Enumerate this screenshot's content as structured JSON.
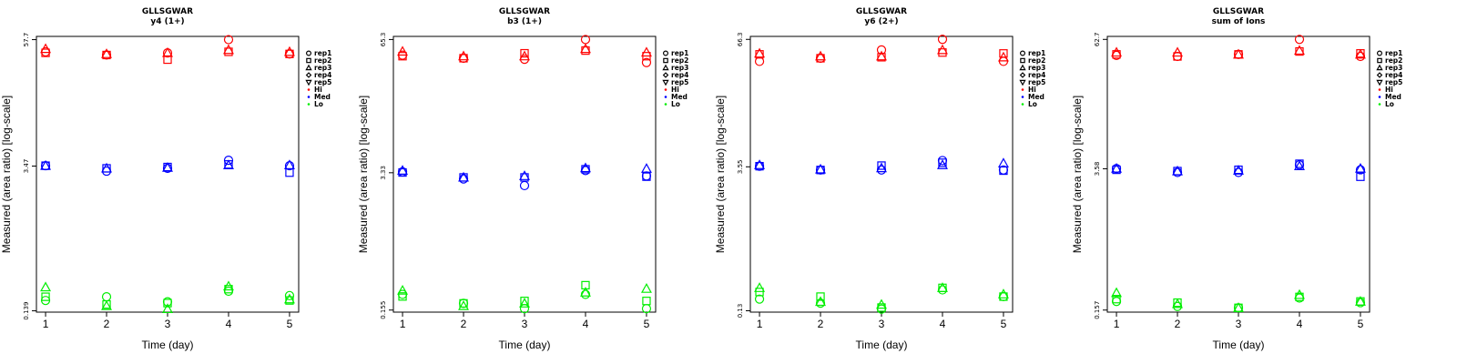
{
  "colors": {
    "Hi": "#ff0000",
    "Med": "#0000ff",
    "Lo": "#00ee00",
    "axis": "#000000"
  },
  "legend": {
    "items": [
      {
        "label": "rep1",
        "shape": "circle"
      },
      {
        "label": "rep2",
        "shape": "square"
      },
      {
        "label": "rep3",
        "shape": "triangle-up"
      },
      {
        "label": "rep4",
        "shape": "diamond"
      },
      {
        "label": "rep5",
        "shape": "triangle-down"
      },
      {
        "label": "Hi",
        "dot": "Hi"
      },
      {
        "label": "Med",
        "dot": "Med"
      },
      {
        "label": "Lo",
        "dot": "Lo"
      }
    ]
  },
  "chart_data": [
    {
      "type": "scatter",
      "title": "GLLSGWAR",
      "subtitle": "y4 (1+)",
      "xlabel": "Time (day)",
      "ylabel": "Measured (area ratio) [log-scale]",
      "x": [
        1,
        2,
        3,
        4,
        5
      ],
      "xlim": [
        0.85,
        5.15
      ],
      "ylim": [
        0.135,
        62
      ],
      "yticks": [
        {
          "value": 0.139,
          "label": "0.139"
        },
        {
          "value": 3.47,
          "label": "3.47"
        },
        {
          "value": 57.7,
          "label": "57.7"
        }
      ],
      "series": [
        {
          "level": "Hi",
          "rep": "rep1",
          "values": [
            44,
            41,
            43,
            57.7,
            42
          ]
        },
        {
          "level": "Hi",
          "rep": "rep2",
          "values": [
            43,
            41,
            37,
            44,
            42
          ]
        },
        {
          "level": "Hi",
          "rep": "rep3",
          "values": [
            47,
            42,
            43,
            46,
            44
          ]
        },
        {
          "level": "Med",
          "rep": "rep1",
          "values": [
            3.5,
            3.1,
            3.3,
            3.95,
            3.5
          ]
        },
        {
          "level": "Med",
          "rep": "rep2",
          "values": [
            3.5,
            3.3,
            3.4,
            3.6,
            3.0
          ]
        },
        {
          "level": "Med",
          "rep": "rep3",
          "values": [
            3.5,
            3.3,
            3.35,
            3.55,
            3.55
          ]
        },
        {
          "level": "Lo",
          "rep": "rep1",
          "values": [
            0.175,
            0.19,
            0.17,
            0.215,
            0.195
          ]
        },
        {
          "level": "Lo",
          "rep": "rep2",
          "values": [
            0.19,
            0.16,
            0.165,
            0.225,
            0.175
          ]
        },
        {
          "level": "Lo",
          "rep": "rep3",
          "values": [
            0.235,
            0.155,
            0.145,
            0.24,
            0.18
          ]
        }
      ]
    },
    {
      "type": "scatter",
      "title": "GLLSGWAR",
      "subtitle": "b3 (1+)",
      "xlabel": "Time (day)",
      "ylabel": "Measured (area ratio) [log-scale]",
      "x": [
        1,
        2,
        3,
        4,
        5
      ],
      "xlim": [
        0.85,
        5.15
      ],
      "ylim": [
        0.148,
        70
      ],
      "yticks": [
        {
          "value": 0.155,
          "label": "0.155"
        },
        {
          "value": 3.33,
          "label": "3.33"
        },
        {
          "value": 65.3,
          "label": "65.3"
        }
      ],
      "series": [
        {
          "level": "Hi",
          "rep": "rep1",
          "values": [
            46,
            43,
            42,
            65.3,
            39
          ]
        },
        {
          "level": "Hi",
          "rep": "rep2",
          "values": [
            45,
            43,
            48,
            51,
            45
          ]
        },
        {
          "level": "Hi",
          "rep": "rep3",
          "values": [
            50,
            45,
            45,
            53,
            49
          ]
        },
        {
          "level": "Med",
          "rep": "rep1",
          "values": [
            3.4,
            2.9,
            2.5,
            3.5,
            3.1
          ]
        },
        {
          "level": "Med",
          "rep": "rep2",
          "values": [
            3.35,
            3.0,
            3.0,
            3.6,
            3.05
          ]
        },
        {
          "level": "Med",
          "rep": "rep3",
          "values": [
            3.5,
            3.0,
            3.1,
            3.7,
            3.65
          ]
        },
        {
          "level": "Lo",
          "rep": "rep1",
          "values": [
            0.22,
            0.18,
            0.16,
            0.22,
            0.16
          ]
        },
        {
          "level": "Lo",
          "rep": "rep2",
          "values": [
            0.21,
            0.18,
            0.19,
            0.27,
            0.19
          ]
        },
        {
          "level": "Lo",
          "rep": "rep3",
          "values": [
            0.24,
            0.17,
            0.18,
            0.23,
            0.25
          ]
        }
      ]
    },
    {
      "type": "scatter",
      "title": "GLLSGWAR",
      "subtitle": "y6 (2+)",
      "xlabel": "Time (day)",
      "ylabel": "Measured (area ratio) [log-scale]",
      "x": [
        1,
        2,
        3,
        4,
        5
      ],
      "xlim": [
        0.85,
        5.15
      ],
      "ylim": [
        0.126,
        71
      ],
      "yticks": [
        {
          "value": 0.13,
          "label": "0.13"
        },
        {
          "value": 3.55,
          "label": "3.55"
        },
        {
          "value": 66.3,
          "label": "66.3"
        }
      ],
      "series": [
        {
          "level": "Hi",
          "rep": "rep1",
          "values": [
            40,
            43,
            52,
            66.3,
            40
          ]
        },
        {
          "level": "Hi",
          "rep": "rep2",
          "values": [
            47,
            43,
            44,
            49,
            48
          ]
        },
        {
          "level": "Hi",
          "rep": "rep3",
          "values": [
            48,
            45,
            45,
            52,
            44
          ]
        },
        {
          "level": "Med",
          "rep": "rep1",
          "values": [
            3.6,
            3.3,
            3.3,
            4.1,
            3.3
          ]
        },
        {
          "level": "Med",
          "rep": "rep2",
          "values": [
            3.6,
            3.3,
            3.65,
            3.9,
            3.25
          ]
        },
        {
          "level": "Med",
          "rep": "rep3",
          "values": [
            3.7,
            3.35,
            3.45,
            3.7,
            3.85
          ]
        },
        {
          "level": "Lo",
          "rep": "rep1",
          "values": [
            0.17,
            0.155,
            0.135,
            0.21,
            0.18
          ]
        },
        {
          "level": "Lo",
          "rep": "rep2",
          "values": [
            0.2,
            0.18,
            0.14,
            0.22,
            0.18
          ]
        },
        {
          "level": "Lo",
          "rep": "rep3",
          "values": [
            0.22,
            0.16,
            0.15,
            0.22,
            0.19
          ]
        }
      ]
    },
    {
      "type": "scatter",
      "title": "GLLSGWAR",
      "subtitle": "sum of Ions",
      "xlabel": "Time (day)",
      "ylabel": "Measured (area ratio) [log-scale]",
      "x": [
        1,
        2,
        3,
        4,
        5
      ],
      "xlim": [
        0.85,
        5.15
      ],
      "ylim": [
        0.15,
        67
      ],
      "yticks": [
        {
          "value": 0.157,
          "label": "0.157"
        },
        {
          "value": 3.58,
          "label": "3.58"
        },
        {
          "value": 62.7,
          "label": "62.7"
        }
      ],
      "series": [
        {
          "level": "Hi",
          "rep": "rep1",
          "values": [
            44,
            43,
            45,
            62.7,
            43
          ]
        },
        {
          "level": "Hi",
          "rep": "rep2",
          "values": [
            45,
            43,
            45,
            48,
            46
          ]
        },
        {
          "level": "Hi",
          "rep": "rep3",
          "values": [
            47,
            47,
            45,
            49,
            45
          ]
        },
        {
          "level": "Med",
          "rep": "rep1",
          "values": [
            3.6,
            3.3,
            3.3,
            3.9,
            3.5
          ]
        },
        {
          "level": "Med",
          "rep": "rep2",
          "values": [
            3.5,
            3.4,
            3.5,
            4.0,
            3.0
          ]
        },
        {
          "level": "Med",
          "rep": "rep3",
          "values": [
            3.6,
            3.4,
            3.45,
            3.8,
            3.6
          ]
        },
        {
          "level": "Lo",
          "rep": "rep1",
          "values": [
            0.19,
            0.17,
            0.165,
            0.205,
            0.185
          ]
        },
        {
          "level": "Lo",
          "rep": "rep2",
          "values": [
            0.2,
            0.185,
            0.165,
            0.21,
            0.19
          ]
        },
        {
          "level": "Lo",
          "rep": "rep3",
          "values": [
            0.23,
            0.18,
            0.165,
            0.22,
            0.19
          ]
        }
      ]
    }
  ]
}
